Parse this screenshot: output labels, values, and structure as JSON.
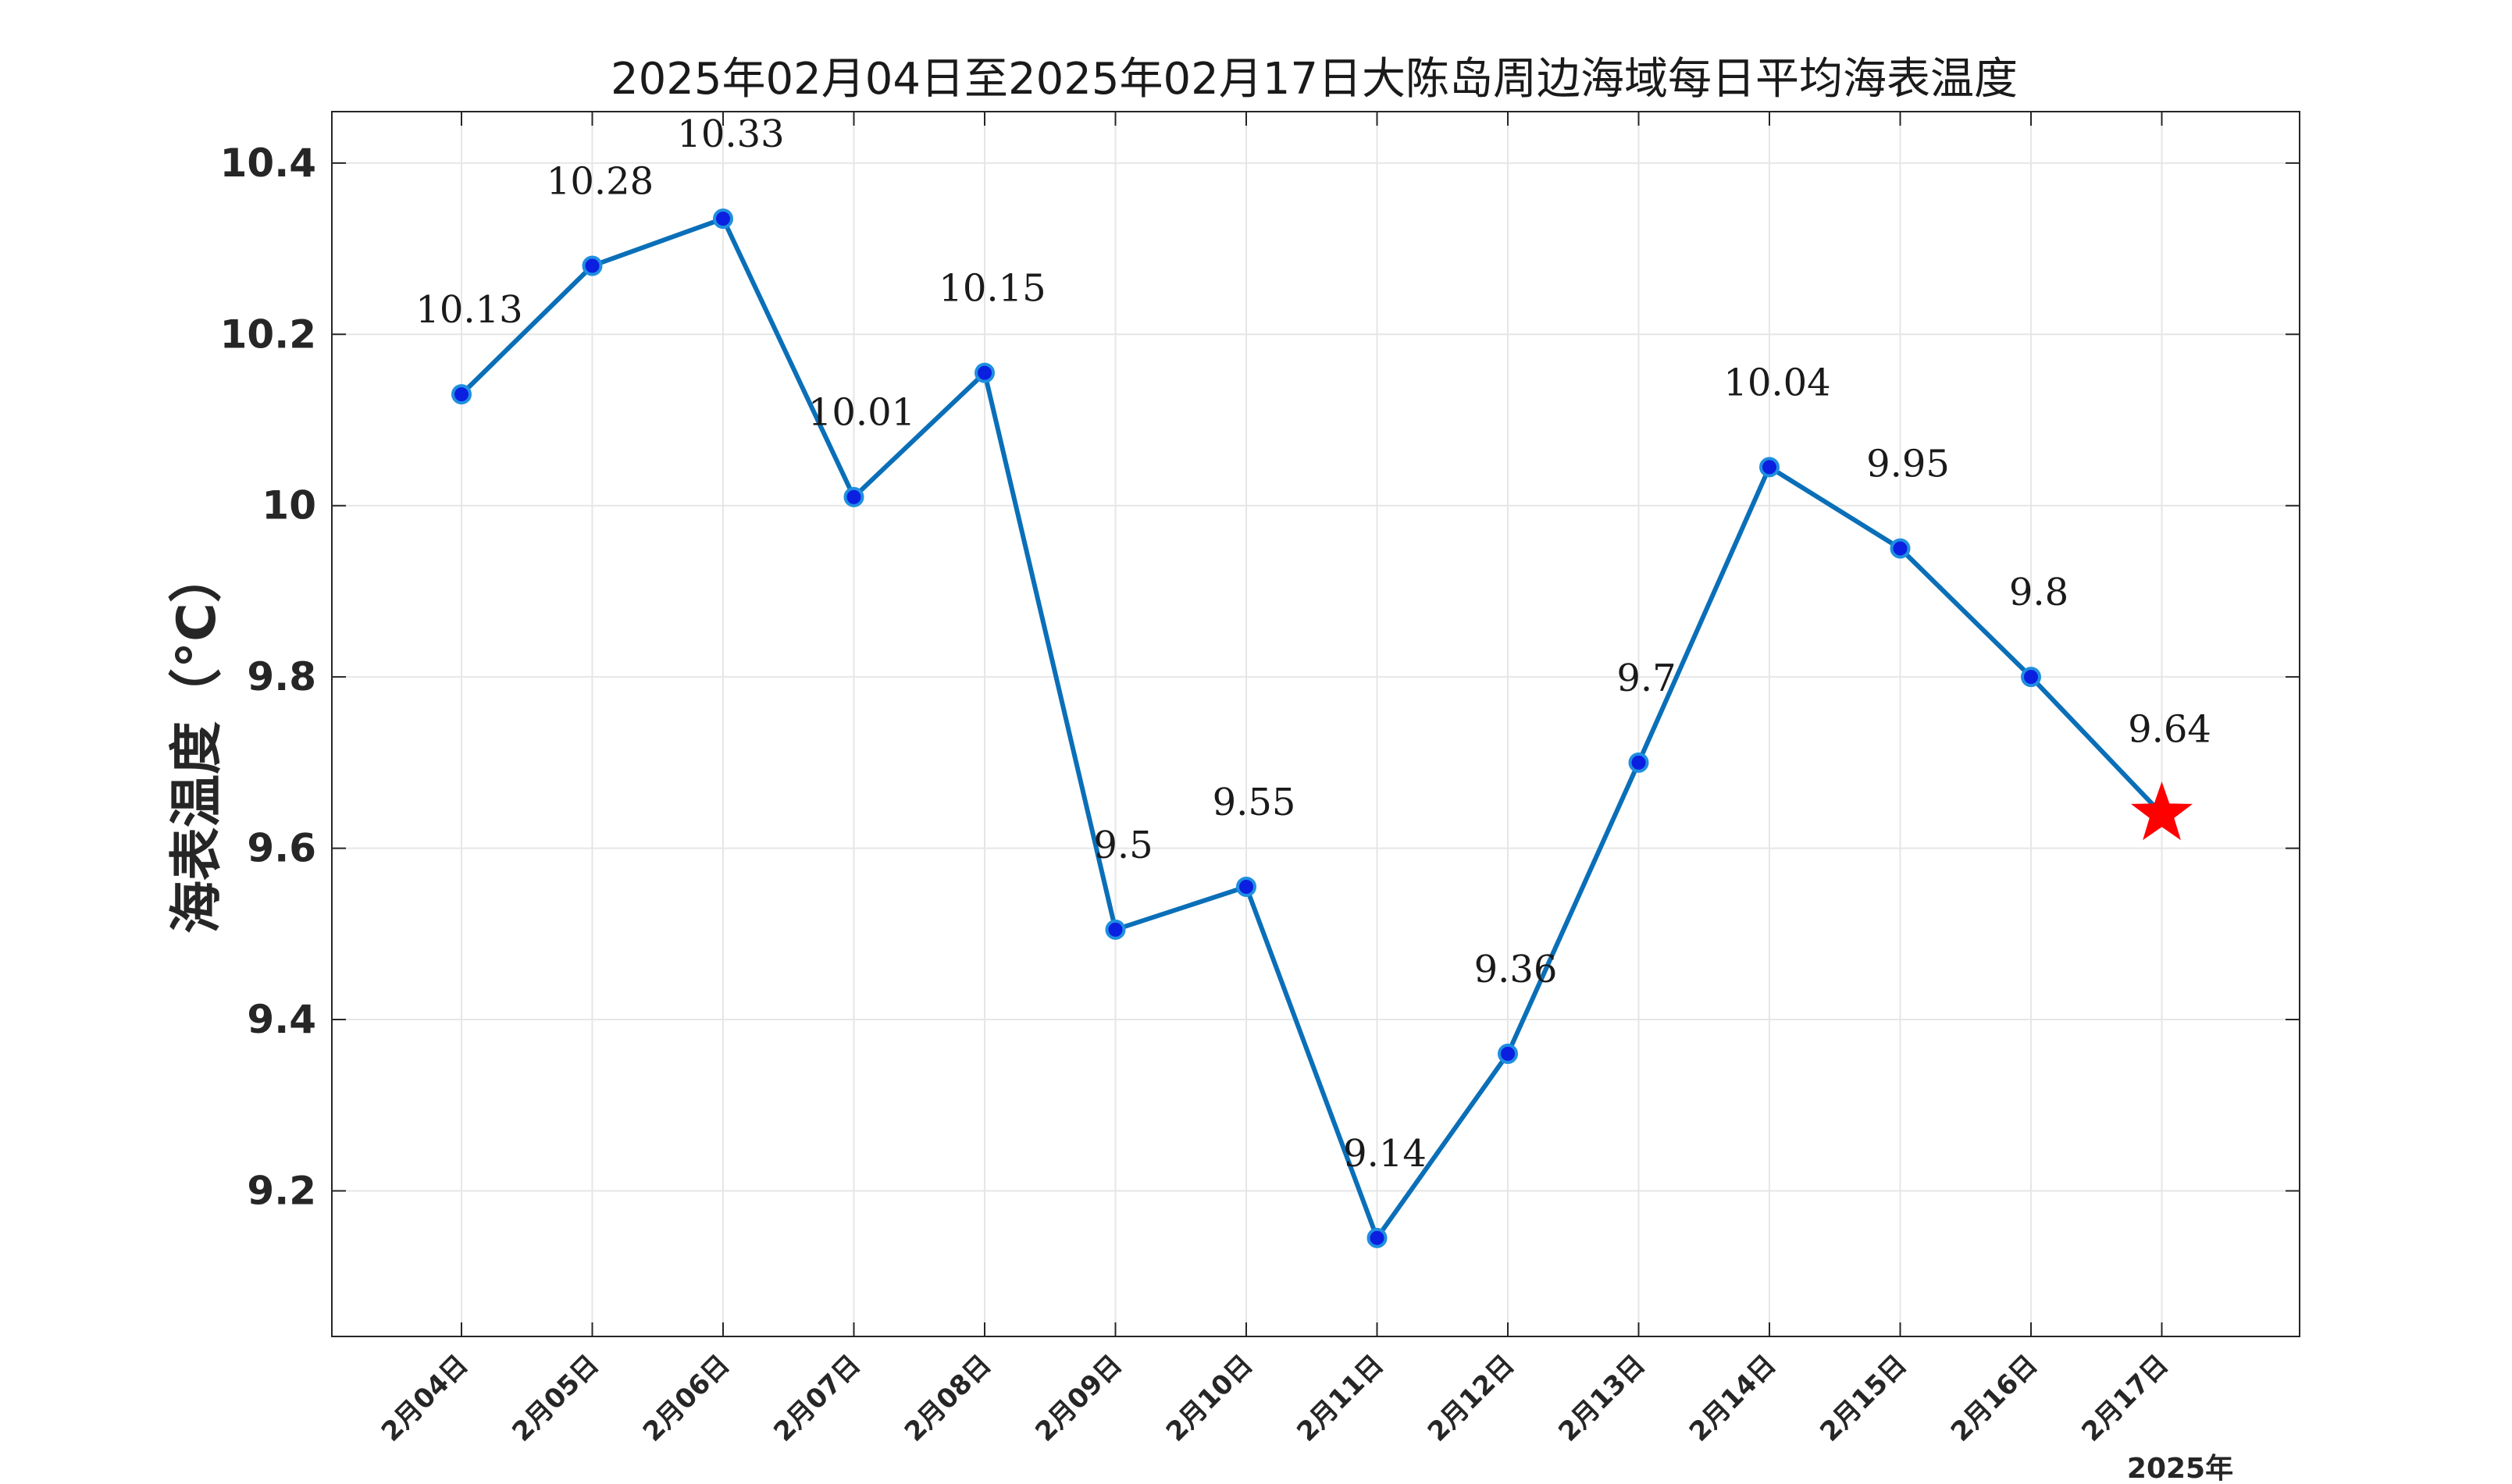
{
  "chart_data": {
    "type": "line",
    "title": "2025年02月04日至2025年02月17日大陈岛周边海域每日平均海表温度",
    "ylabel": "海表温度（°C）",
    "xlabel": "2025年",
    "categories": [
      "2月04日",
      "2月05日",
      "2月06日",
      "2月07日",
      "2月08日",
      "2月09日",
      "2月10日",
      "2月11日",
      "2月12日",
      "2月13日",
      "2月14日",
      "2月15日",
      "2月16日",
      "2月17日"
    ],
    "series": [
      {
        "values": [
          10.13,
          10.28,
          10.335,
          10.01,
          10.155,
          9.505,
          9.555,
          9.145,
          9.36,
          9.7,
          10.045,
          9.95,
          9.8,
          9.64
        ]
      }
    ],
    "data_labels": [
      "10.13",
      "10.28",
      "10.33",
      "10.01",
      "10.15",
      "9.5",
      "9.55",
      "9.14",
      "9.36",
      "9.7",
      "10.04",
      "9.95",
      "9.8",
      "9.64"
    ],
    "ylim": [
      9.03,
      10.46
    ],
    "yticks": [
      9.2,
      9.4,
      9.6,
      9.8,
      10,
      10.2,
      10.4
    ],
    "ytick_labels": [
      "9.2",
      "9.4",
      "9.6",
      "9.8",
      "10",
      "10.2",
      "10.4"
    ],
    "grid": true,
    "colors": {
      "line": "#0a6fb8",
      "marker_fill": "#0b1fe0",
      "marker_edge": "#1f8fe0",
      "last_marker": "#ff0000",
      "grid": "#e6e6e6",
      "axes": "#262626"
    },
    "last_point_marker": "star"
  }
}
